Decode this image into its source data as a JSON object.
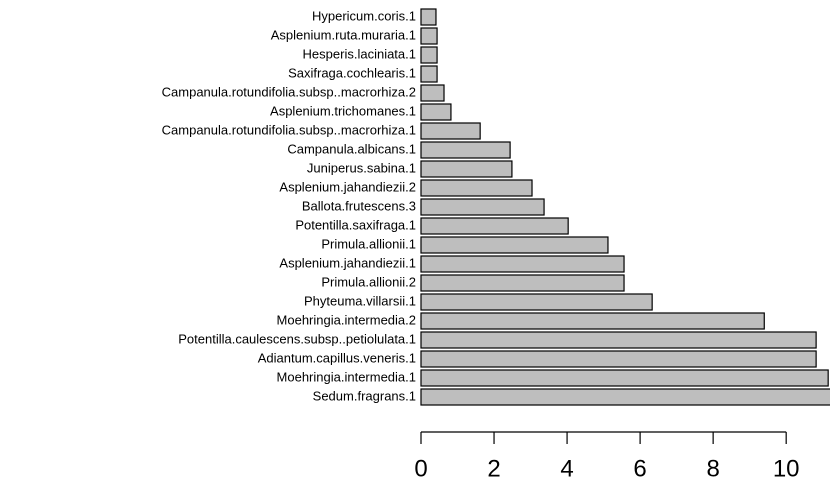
{
  "chart_data": {
    "type": "bar",
    "orientation": "horizontal",
    "categories": [
      "Hypericum.coris.1",
      "Asplenium.ruta.muraria.1",
      "Hesperis.laciniata.1",
      "Saxifraga.cochlearis.1",
      "Campanula.rotundifolia.subsp..macrorhiza.2",
      "Asplenium.trichomanes.1",
      "Campanula.rotundifolia.subsp..macrorhiza.1",
      "Campanula.albicans.1",
      "Juniperus.sabina.1",
      "Asplenium.jahandiezii.2",
      "Ballota.frutescens.3",
      "Potentilla.saxifraga.1",
      "Primula.allionii.1",
      "Asplenium.jahandiezii.1",
      "Primula.allionii.2",
      "Phyteuma.villarsii.1",
      "Moehringia.intermedia.2",
      "Potentilla.caulescens.subsp..petiolulata.1",
      "Adiantum.capillus.veneris.1",
      "Moehringia.intermedia.1",
      "Sedum.fragrans.1"
    ],
    "values": [
      0.41,
      0.44,
      0.44,
      0.44,
      0.63,
      0.82,
      1.62,
      2.44,
      2.49,
      3.04,
      3.37,
      4.03,
      5.12,
      5.56,
      5.56,
      6.33,
      9.4,
      10.82,
      10.82,
      11.15,
      11.4
    ],
    "color": "#bebebe",
    "xlim": [
      0,
      11.2
    ],
    "xticks": [
      0,
      2,
      4,
      6,
      8,
      10
    ]
  }
}
